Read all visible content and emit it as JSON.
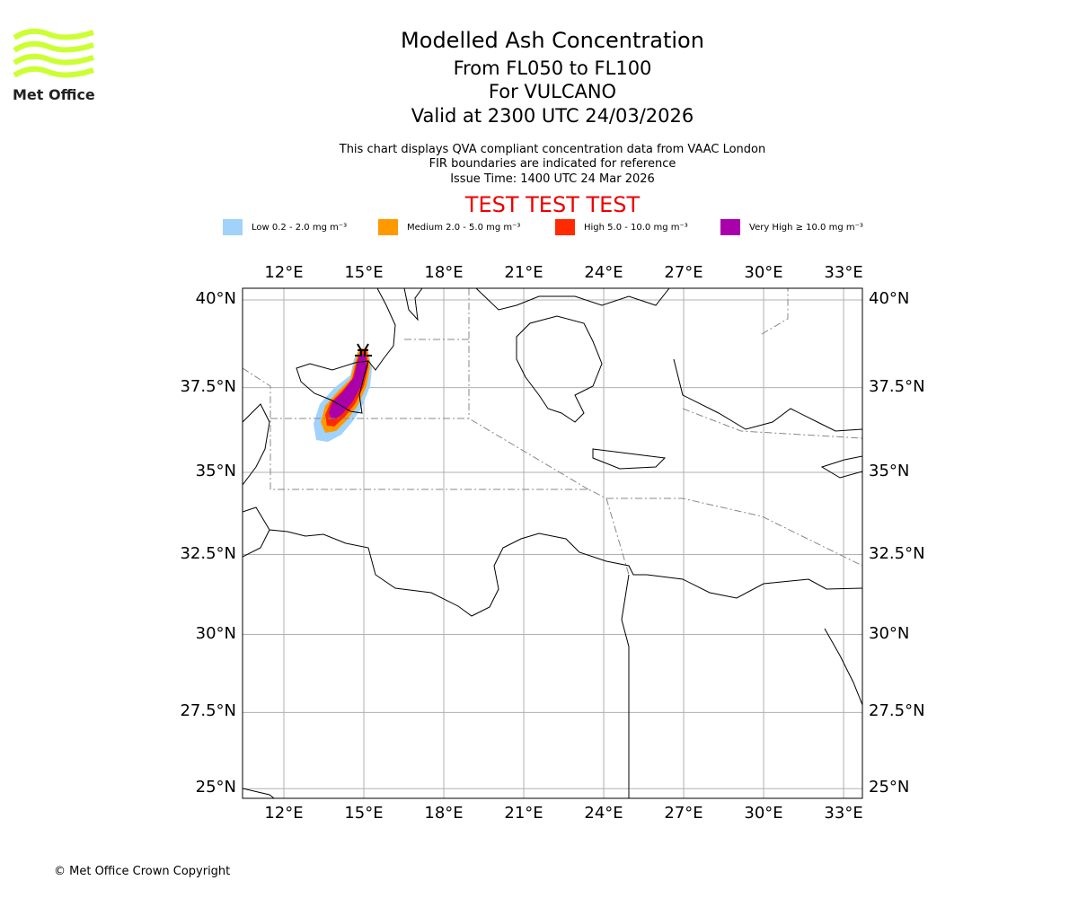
{
  "logo": {
    "text": "Met Office"
  },
  "header": {
    "title": "Modelled Ash Concentration",
    "levels": "From FL050 to FL100",
    "volcano": "For VULCANO",
    "valid": "Valid at 2300 UTC 24/03/2026",
    "note1": "This chart displays QVA compliant concentration data from VAAC London",
    "note2": "FIR boundaries are indicated for reference",
    "issue": "Issue Time: 1400 UTC 24 Mar 2026",
    "test_banner": "TEST TEST TEST"
  },
  "legend": [
    {
      "label": "Low 0.2 - 2.0 mg m⁻³",
      "color": "#a0d2fc"
    },
    {
      "label": "Medium 2.0 - 5.0 mg m⁻³",
      "color": "#ff9900"
    },
    {
      "label": "High 5.0 - 10.0 mg m⁻³",
      "color": "#ff2a00"
    },
    {
      "label": "Very High ≥ 10.0 mg m⁻³",
      "color": "#aa00aa"
    }
  ],
  "chart_data": {
    "type": "map",
    "projection": "mercator",
    "lon_range": [
      10.45,
      33.7
    ],
    "lat_range": [
      24.2,
      40.4
    ],
    "lon_ticks": [
      12,
      15,
      18,
      21,
      24,
      27,
      30,
      33
    ],
    "lon_labels": [
      "12°E",
      "15°E",
      "18°E",
      "21°E",
      "24°E",
      "27°E",
      "30°E",
      "33°E"
    ],
    "lat_ticks": [
      40,
      37.5,
      35,
      32.5,
      30,
      27.5,
      25
    ],
    "lat_labels": [
      "40°N",
      "37.5°N",
      "35°N",
      "32.5°N",
      "30°N",
      "27.5°N",
      "25°N"
    ],
    "grid": true,
    "volcano_location": {
      "lon": 14.96,
      "lat": 38.4
    }
  },
  "footer": {
    "copyright": "© Met Office Crown Copyright"
  }
}
